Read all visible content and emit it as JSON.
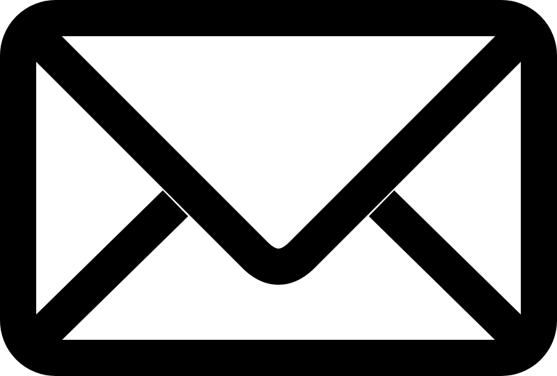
{
  "icon": {
    "name": "mail-envelope-icon",
    "stroke_color": "#000000",
    "background_color": "#ffffff"
  }
}
